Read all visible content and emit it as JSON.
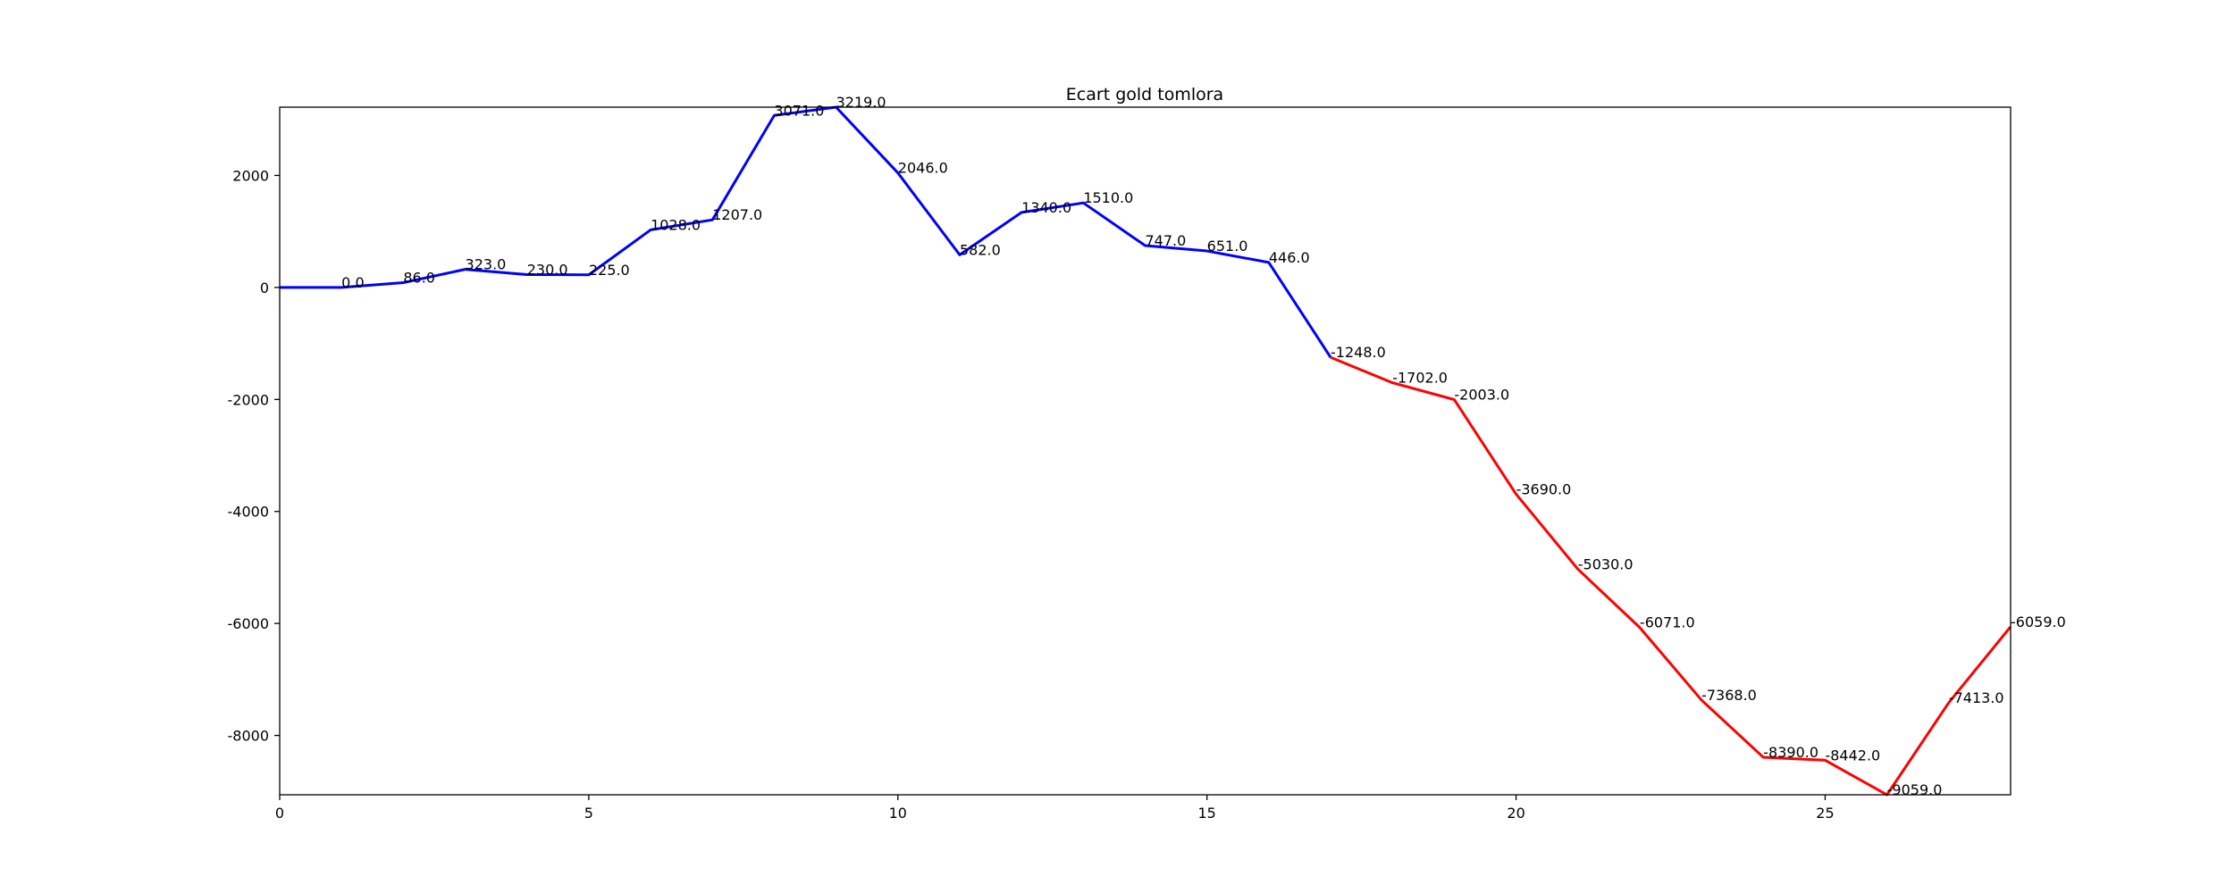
{
  "chart_data": {
    "type": "line",
    "title": "Ecart gold tomlora",
    "x": [
      0,
      1,
      2,
      3,
      4,
      5,
      6,
      7,
      8,
      9,
      10,
      11,
      12,
      13,
      14,
      15,
      16,
      17,
      18,
      19,
      20,
      21,
      22,
      23,
      24,
      25,
      26,
      27,
      28
    ],
    "series": [
      {
        "color": "#0000ff",
        "values": [
          0,
          0,
          86,
          323,
          230,
          225,
          1028,
          1207,
          3071,
          3219,
          2046,
          582,
          1340,
          1510,
          747,
          651,
          446,
          -1248,
          null,
          null,
          null,
          null,
          null,
          null,
          null,
          null,
          null,
          null,
          null
        ],
        "value_labels": [
          null,
          "0.0",
          "86.0",
          "323.0",
          "230.0",
          "225.0",
          "1028.0",
          "1207.0",
          "3071.0",
          "3219.0",
          "2046.0",
          "582.0",
          "1340.0",
          "1510.0",
          "747.0",
          "651.0",
          "446.0",
          "-1248.0",
          null,
          null,
          null,
          null,
          null,
          null,
          null,
          null,
          null,
          null,
          null
        ]
      },
      {
        "color": "#ff0000",
        "values": [
          null,
          null,
          null,
          null,
          null,
          null,
          null,
          null,
          null,
          null,
          null,
          null,
          null,
          null,
          null,
          null,
          null,
          -1248,
          -1702,
          -2003,
          -3690,
          -5030,
          -6071,
          -7368,
          -8390,
          -8442,
          -9059,
          -7413,
          -6059
        ],
        "value_labels": [
          null,
          null,
          null,
          null,
          null,
          null,
          null,
          null,
          null,
          null,
          null,
          null,
          null,
          null,
          null,
          null,
          null,
          null,
          "-1702.0",
          "-2003.0",
          "-3690.0",
          "-5030.0",
          "-6071.0",
          "-7368.0",
          "-8390.0",
          "-8442.0",
          "-9059.0",
          "-7413.0",
          "-6059.0"
        ]
      }
    ],
    "xlim": [
      0,
      28
    ],
    "xticks": [
      0,
      5,
      10,
      15,
      20,
      25
    ],
    "ylim": [
      -9059,
      3219
    ],
    "yticks": [
      -8000,
      -6000,
      -4000,
      -2000,
      0,
      2000
    ]
  }
}
